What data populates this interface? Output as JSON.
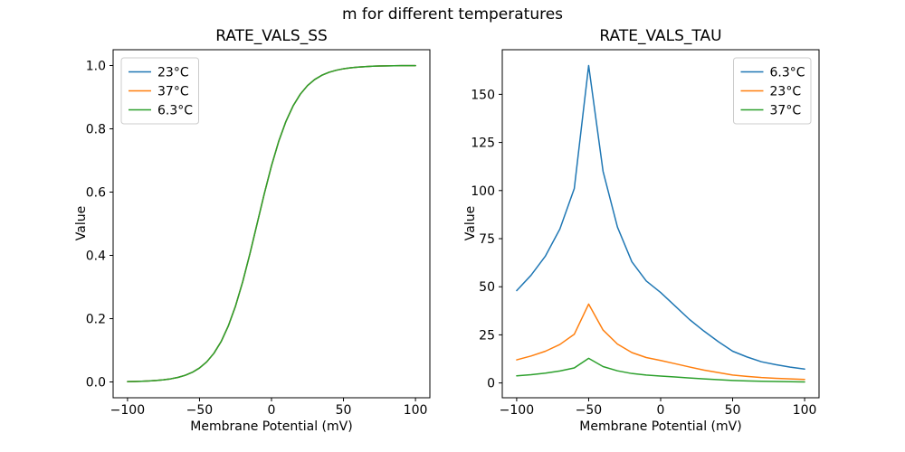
{
  "suptitle": "m for different temperatures",
  "chart_data": [
    {
      "type": "line",
      "title": "RATE_VALS_SS",
      "xlabel": "Membrane Potential (mV)",
      "ylabel": "Value",
      "xlim": [
        -110,
        110
      ],
      "ylim": [
        -0.05,
        1.05
      ],
      "grid": false,
      "legend_position": "upper left",
      "xtick_vals": [
        -100,
        -50,
        0,
        50,
        100
      ],
      "xtick_labels": [
        "−100",
        "−50",
        "0",
        "50",
        "100"
      ],
      "ytick_vals": [
        0,
        0.2,
        0.4,
        0.6,
        0.8,
        1.0
      ],
      "ytick_labels": [
        "0.0",
        "0.2",
        "0.4",
        "0.6",
        "0.8",
        "1.0"
      ],
      "x": [
        -100,
        -95,
        -90,
        -85,
        -80,
        -75,
        -70,
        -65,
        -60,
        -55,
        -50,
        -45,
        -40,
        -35,
        -30,
        -25,
        -20,
        -15,
        -10,
        -5,
        0,
        5,
        10,
        15,
        20,
        25,
        30,
        35,
        40,
        45,
        50,
        55,
        60,
        65,
        70,
        75,
        80,
        85,
        90,
        95,
        100
      ],
      "shared_values": [
        0.001,
        0.0015,
        0.0021,
        0.0031,
        0.0046,
        0.0067,
        0.0098,
        0.0143,
        0.0209,
        0.0304,
        0.0441,
        0.0634,
        0.0905,
        0.1275,
        0.1768,
        0.2398,
        0.3167,
        0.405,
        0.5,
        0.595,
        0.6833,
        0.7602,
        0.8232,
        0.8725,
        0.9095,
        0.9366,
        0.9559,
        0.9694,
        0.9787,
        0.9852,
        0.9898,
        0.9929,
        0.9951,
        0.9966,
        0.9977,
        0.9984,
        0.9989,
        0.9992,
        0.9995,
        0.9996,
        0.9997
      ],
      "series": [
        {
          "name": "23°C",
          "color": "#1f77b4"
        },
        {
          "name": "37°C",
          "color": "#ff7f0e"
        },
        {
          "name": "6.3°C",
          "color": "#2ca02c"
        }
      ]
    },
    {
      "type": "line",
      "title": "RATE_VALS_TAU",
      "xlabel": "Membrane Potential (mV)",
      "ylabel": "Value",
      "xlim": [
        -110,
        110
      ],
      "ylim": [
        -7.7,
        173.2
      ],
      "grid": false,
      "legend_position": "upper right",
      "xtick_vals": [
        -100,
        -50,
        0,
        50,
        100
      ],
      "xtick_labels": [
        "−100",
        "−50",
        "0",
        "50",
        "100"
      ],
      "ytick_vals": [
        0,
        25,
        50,
        75,
        100,
        125,
        150
      ],
      "ytick_labels": [
        "0",
        "25",
        "50",
        "75",
        "100",
        "125",
        "150"
      ],
      "x": [
        -100,
        -90,
        -80,
        -70,
        -60,
        -50,
        -40,
        -30,
        -20,
        -10,
        0,
        10,
        20,
        30,
        40,
        50,
        60,
        70,
        80,
        90,
        100
      ],
      "series": [
        {
          "name": "6.3°C",
          "color": "#1f77b4",
          "values": [
            48,
            56,
            66,
            80,
            101,
            165,
            110,
            81,
            63,
            53,
            47,
            40,
            33,
            27,
            21.5,
            16.5,
            13.5,
            11,
            9.5,
            8.2,
            7.2
          ]
        },
        {
          "name": "23°C",
          "color": "#ff7f0e",
          "values": [
            12,
            14,
            16.5,
            20,
            25.3,
            41,
            27.5,
            20.2,
            15.8,
            13.2,
            11.7,
            10,
            8.3,
            6.7,
            5.4,
            4.1,
            3.4,
            2.8,
            2.4,
            2.1,
            1.8
          ]
        },
        {
          "name": "37°C",
          "color": "#2ca02c",
          "values": [
            3.7,
            4.3,
            5.1,
            6.2,
            7.8,
            12.8,
            8.5,
            6.3,
            4.9,
            4.1,
            3.6,
            3.1,
            2.6,
            2.1,
            1.7,
            1.3,
            1.05,
            0.87,
            0.73,
            0.62,
            0.55
          ]
        }
      ]
    }
  ]
}
